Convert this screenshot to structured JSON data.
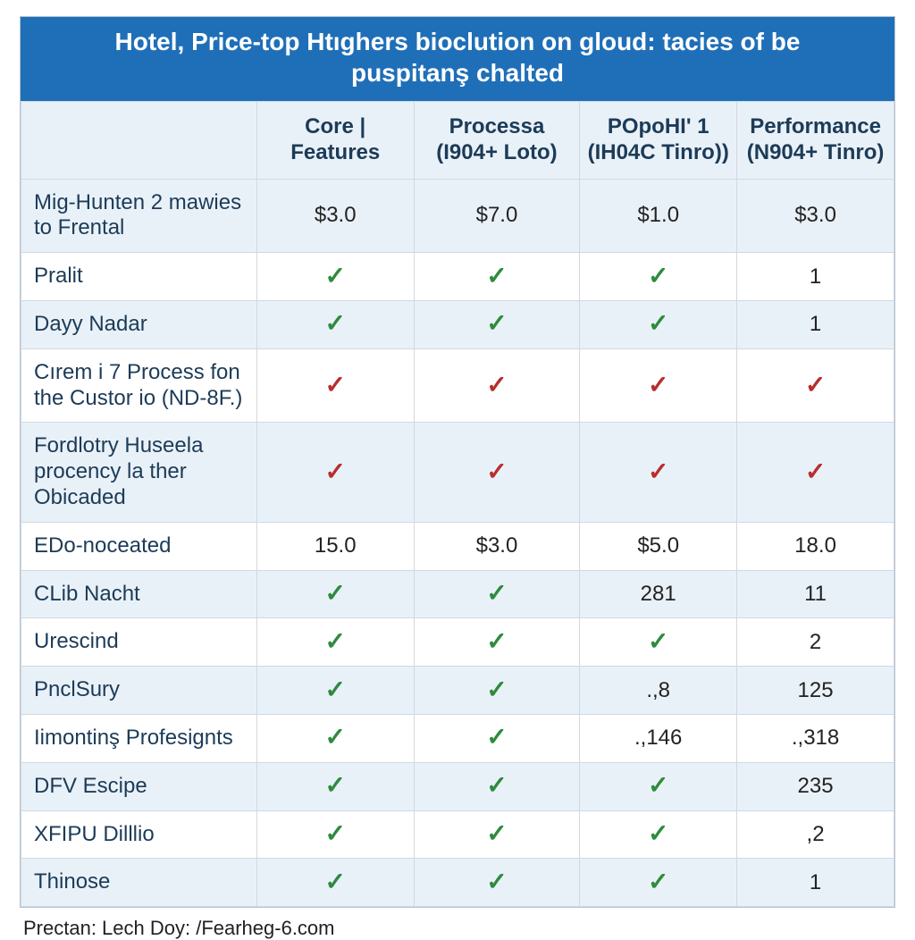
{
  "title": "Hotel, Price-top Htıghers bioclution on gloud: tacies of be puspitanş chalted",
  "footer": "Prectan: Lech Doy: /Fearheg-6.com",
  "columns": [
    "Core | Features",
    "Processa (I904+ Loto)",
    "POpoHI' 1 (IH04C Tinro))",
    "Performance (N904+ Tinro)"
  ],
  "check_glyph": "✓",
  "check_green": "#2e8b3d",
  "check_red": "#b82e2e",
  "header_bg": "#1f6fb8",
  "stripe_bg": "#e9f1f8",
  "text_color": "#1c3b57",
  "rows": [
    {
      "label": "Mig-Hunten 2 mawies to Frental",
      "cells": [
        {
          "t": "text",
          "v": "$3.0"
        },
        {
          "t": "text",
          "v": "$7.0"
        },
        {
          "t": "text",
          "v": "$1.0"
        },
        {
          "t": "text",
          "v": "$3.0"
        }
      ]
    },
    {
      "label": "Pralit",
      "cells": [
        {
          "t": "check",
          "c": "green"
        },
        {
          "t": "check",
          "c": "green"
        },
        {
          "t": "check",
          "c": "green"
        },
        {
          "t": "text",
          "v": "1"
        }
      ]
    },
    {
      "label": "Dayy Nadar",
      "cells": [
        {
          "t": "check",
          "c": "green"
        },
        {
          "t": "check",
          "c": "green"
        },
        {
          "t": "check",
          "c": "green"
        },
        {
          "t": "text",
          "v": "1"
        }
      ]
    },
    {
      "label": "Cırem i 7 Process fon the Custor io (ND-8F.)",
      "cells": [
        {
          "t": "check",
          "c": "red"
        },
        {
          "t": "check",
          "c": "red"
        },
        {
          "t": "check",
          "c": "red"
        },
        {
          "t": "check",
          "c": "red"
        }
      ]
    },
    {
      "label": "Fordlotry Huseela procency la ther Obicaded",
      "cells": [
        {
          "t": "check",
          "c": "red"
        },
        {
          "t": "check",
          "c": "red"
        },
        {
          "t": "check",
          "c": "red"
        },
        {
          "t": "check",
          "c": "red"
        }
      ]
    },
    {
      "label": "EDo-noceated",
      "cells": [
        {
          "t": "text",
          "v": "15.0"
        },
        {
          "t": "text",
          "v": "$3.0"
        },
        {
          "t": "text",
          "v": "$5.0"
        },
        {
          "t": "text",
          "v": "18.0"
        }
      ]
    },
    {
      "label": "CLib Nacht",
      "cells": [
        {
          "t": "check",
          "c": "green"
        },
        {
          "t": "check",
          "c": "green"
        },
        {
          "t": "text",
          "v": "281"
        },
        {
          "t": "text",
          "v": "11"
        }
      ]
    },
    {
      "label": "Urescind",
      "cells": [
        {
          "t": "check",
          "c": "green"
        },
        {
          "t": "check",
          "c": "green"
        },
        {
          "t": "check",
          "c": "green"
        },
        {
          "t": "text",
          "v": "2"
        }
      ]
    },
    {
      "label": "PnclSury",
      "cells": [
        {
          "t": "check",
          "c": "green"
        },
        {
          "t": "check",
          "c": "green"
        },
        {
          "t": "text",
          "v": ".,8"
        },
        {
          "t": "text",
          "v": "125"
        }
      ]
    },
    {
      "label": "Iimontinş Profesignts",
      "cells": [
        {
          "t": "check",
          "c": "green"
        },
        {
          "t": "check",
          "c": "green"
        },
        {
          "t": "text",
          "v": ".,146"
        },
        {
          "t": "text",
          "v": ".,318"
        }
      ]
    },
    {
      "label": "DFV Escipe",
      "cells": [
        {
          "t": "check",
          "c": "green"
        },
        {
          "t": "check",
          "c": "green"
        },
        {
          "t": "check",
          "c": "green"
        },
        {
          "t": "text",
          "v": "235"
        }
      ]
    },
    {
      "label": "XFIPU Dilllio",
      "cells": [
        {
          "t": "check",
          "c": "green"
        },
        {
          "t": "check",
          "c": "green"
        },
        {
          "t": "check",
          "c": "green"
        },
        {
          "t": "text",
          "v": ",2"
        }
      ]
    },
    {
      "label": "Thinose",
      "cells": [
        {
          "t": "check",
          "c": "green"
        },
        {
          "t": "check",
          "c": "green"
        },
        {
          "t": "check",
          "c": "green"
        },
        {
          "t": "text",
          "v": "1"
        }
      ]
    }
  ]
}
